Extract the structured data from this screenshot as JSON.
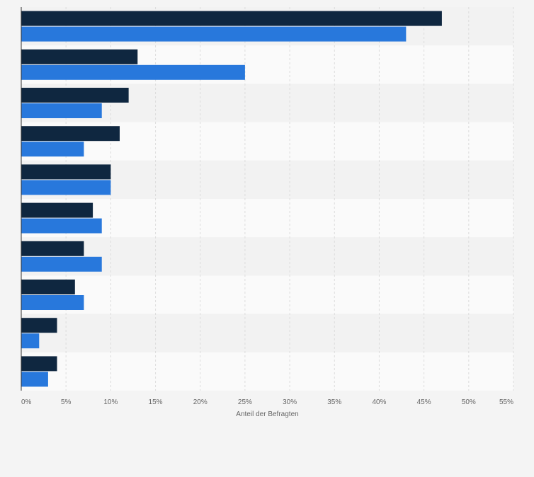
{
  "chart_data": {
    "type": "bar",
    "orientation": "horizontal",
    "title": "",
    "xlabel": "Anteil der Befragten",
    "ylabel": "",
    "xlim": [
      0,
      55
    ],
    "x_ticks": [
      0,
      5,
      10,
      15,
      20,
      25,
      30,
      35,
      40,
      45,
      50,
      55
    ],
    "x_tick_labels": [
      "0%",
      "5%",
      "10%",
      "15%",
      "20%",
      "25%",
      "30%",
      "35%",
      "40%",
      "45%",
      "50%",
      "55%"
    ],
    "category_count": 10,
    "grid": true,
    "legend": "none",
    "series": [
      {
        "color": "#0f2740",
        "values": [
          47,
          13,
          12,
          11,
          10,
          8,
          7,
          6,
          4,
          4
        ]
      },
      {
        "color": "#2878dc",
        "values": [
          43,
          25,
          9,
          7,
          10,
          9,
          9,
          7,
          2,
          3
        ]
      }
    ],
    "colors": {
      "background": "#f4f4f4",
      "band_light": "#fafafa",
      "band_dark": "#f2f2f2",
      "grid": "#dcdcdc",
      "axis": "#333333"
    }
  }
}
